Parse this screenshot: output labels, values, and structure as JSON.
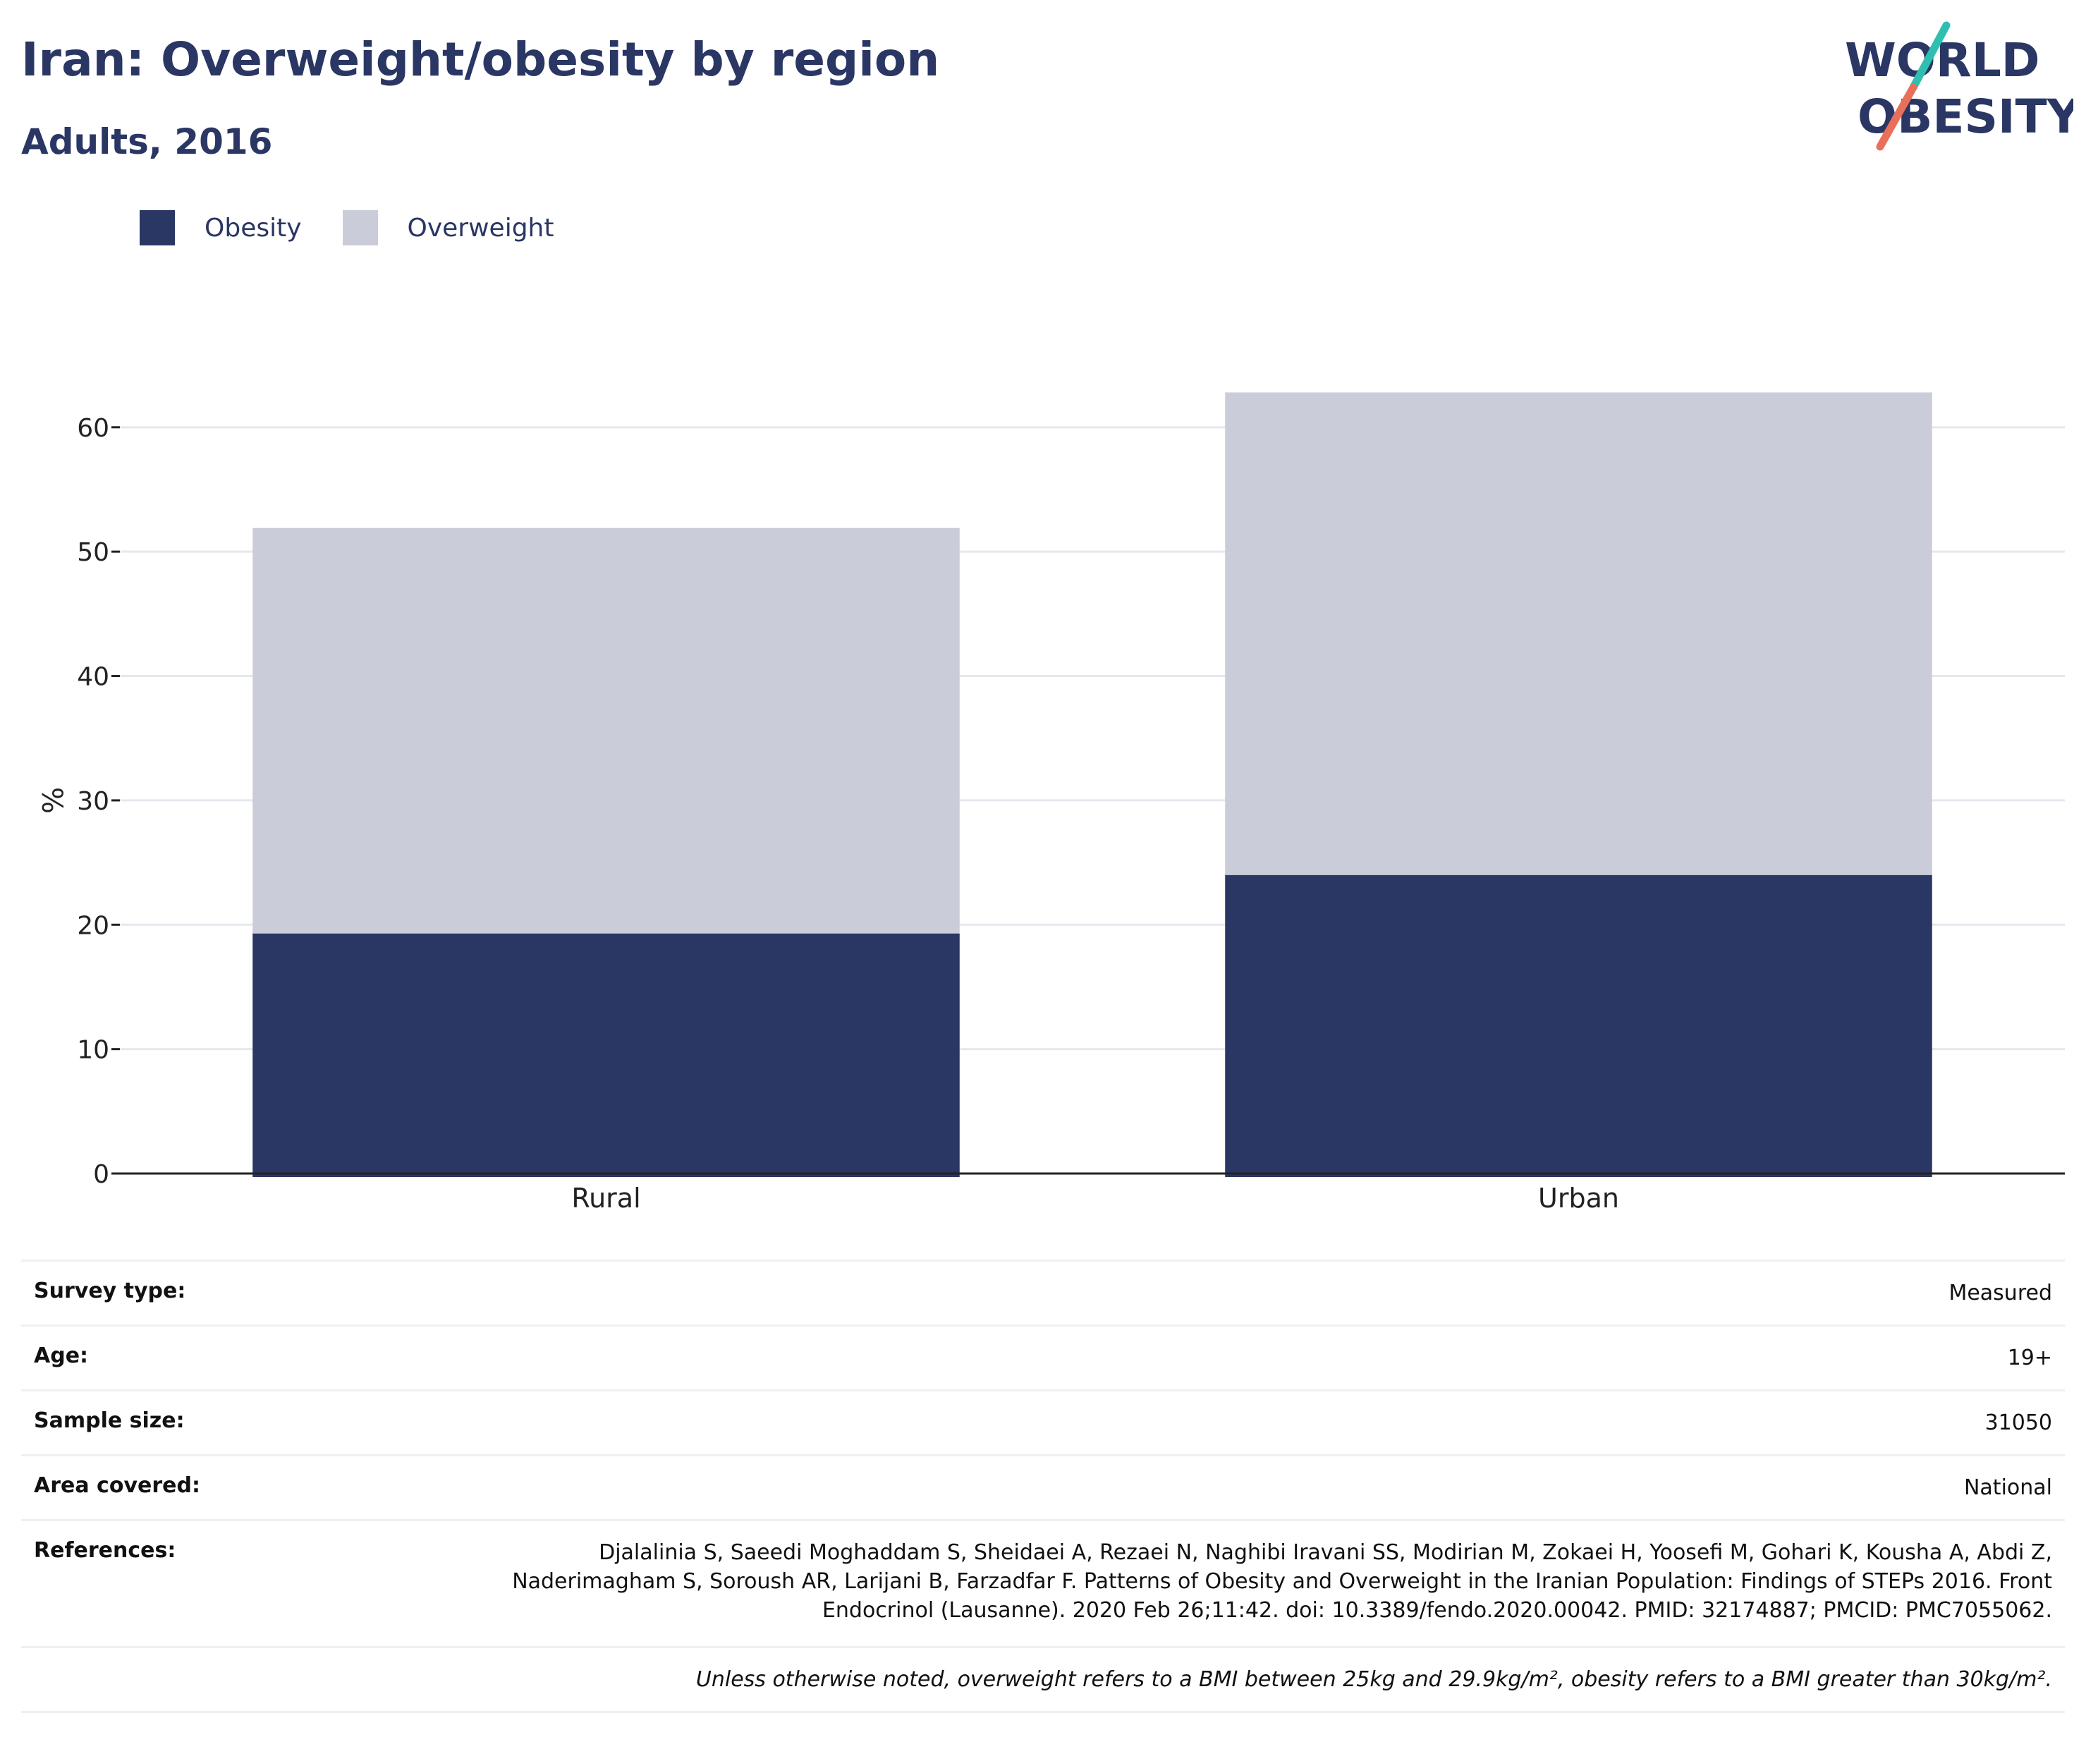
{
  "header": {
    "title": "Iran: Overweight/obesity by region",
    "subtitle": "Adults, 2016"
  },
  "logo": {
    "line1": "WORLD",
    "line2": "OBESITY",
    "accent_colors": [
      "#2ebfb1",
      "#e8705a"
    ]
  },
  "colors": {
    "obesity": "#2a3663",
    "overweight": "#cacdd9",
    "text": "#2a3663"
  },
  "legend": {
    "items": [
      {
        "label": "Obesity",
        "color": "#2a3663"
      },
      {
        "label": "Overweight",
        "color": "#cacdd9"
      }
    ]
  },
  "chart_data": {
    "type": "bar",
    "stacked": true,
    "categories": [
      "Rural",
      "Urban"
    ],
    "series": [
      {
        "name": "Obesity",
        "values": [
          19.3,
          24.0
        ],
        "color": "#2a3663"
      },
      {
        "name": "Overweight",
        "values": [
          32.6,
          38.8
        ],
        "color": "#cacdd9"
      }
    ],
    "ylabel": "%",
    "xlabel": "",
    "ylim": [
      0,
      66
    ],
    "yticks": [
      0,
      10,
      20,
      30,
      40,
      50,
      60
    ],
    "grid": true,
    "legend_position": "top-left"
  },
  "meta": {
    "rows": [
      {
        "label": "Survey type:",
        "value": "Measured"
      },
      {
        "label": "Age:",
        "value": "19+"
      },
      {
        "label": "Sample size:",
        "value": "31050"
      },
      {
        "label": "Area covered:",
        "value": "National"
      },
      {
        "label": "References:",
        "value": "Djalalinia S, Saeedi Moghaddam S, Sheidaei A, Rezaei N, Naghibi Iravani SS, Modirian M, Zokaei H, Yoosefi M, Gohari K, Kousha A, Abdi Z, Naderimagham S, Soroush AR, Larijani B, Farzadfar F. Patterns of Obesity and Overweight in the Iranian Population: Findings of STEPs 2016. Front Endocrinol (Lausanne). 2020 Feb 26;11:42. doi: 10.3389/fendo.2020.00042. PMID: 32174887; PMCID: PMC7055062."
      }
    ],
    "note": "Unless otherwise noted, overweight refers to a BMI between 25kg and 29.9kg/m², obesity refers to a BMI greater than 30kg/m²."
  }
}
